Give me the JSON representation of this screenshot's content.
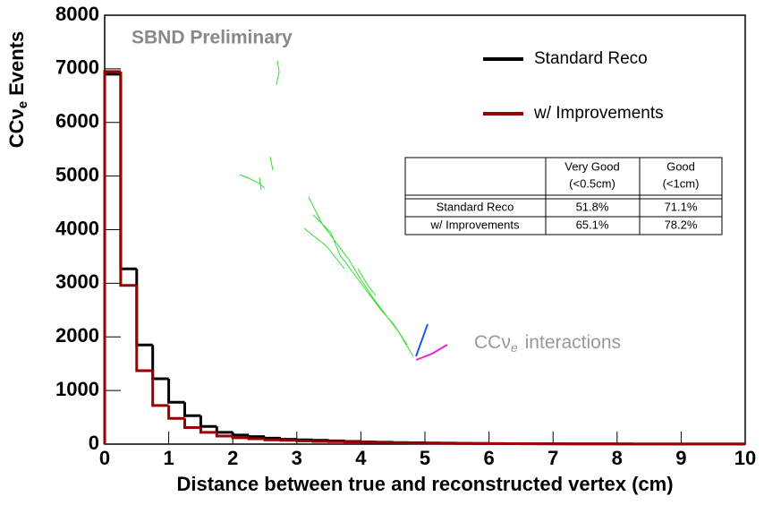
{
  "chart_data": {
    "type": "histogram",
    "annotation_prelim": "SBND Preliminary",
    "annotation_interactions": [
      "CCν",
      "e",
      "interactions"
    ],
    "x_label": "Distance between true and reconstructed vertex (cm)",
    "y_label": [
      "CCν",
      "e",
      "Events"
    ],
    "xlim": [
      0,
      10
    ],
    "ylim": [
      0,
      8000
    ],
    "xticks": [
      0,
      1,
      2,
      3,
      4,
      5,
      6,
      7,
      8,
      9,
      10
    ],
    "yticks": [
      0,
      1000,
      2000,
      3000,
      4000,
      5000,
      6000,
      7000,
      8000
    ],
    "bins": [
      0,
      0.25,
      0.5,
      0.75,
      1,
      1.25,
      1.5,
      1.75,
      2,
      2.25,
      2.5,
      2.75,
      3,
      3.25,
      3.5,
      3.75,
      4,
      4.25,
      4.5,
      4.75,
      5,
      5.25,
      5.5,
      5.75,
      6,
      6.25,
      6.5,
      6.75,
      7,
      7.25,
      7.5,
      7.75,
      8,
      8.25,
      8.5,
      8.75,
      9,
      9.25,
      9.5,
      9.75,
      10
    ],
    "series": [
      {
        "name": "Standard Reco",
        "color": "#000000",
        "values": [
          6900,
          3270,
          1850,
          1220,
          780,
          530,
          330,
          220,
          170,
          140,
          110,
          90,
          80,
          70,
          60,
          50,
          40,
          35,
          30,
          25,
          20,
          18,
          15,
          12,
          10,
          9,
          8,
          7,
          6,
          5,
          5,
          4,
          4,
          3,
          3,
          3,
          2,
          2,
          2,
          2
        ]
      },
      {
        "name": "w/ Improvements",
        "color": "#990000",
        "values": [
          6950,
          2960,
          1370,
          720,
          480,
          310,
          220,
          150,
          120,
          100,
          80,
          70,
          60,
          50,
          45,
          40,
          35,
          30,
          25,
          20,
          18,
          15,
          12,
          10,
          9,
          8,
          7,
          6,
          5,
          5,
          4,
          4,
          3,
          3,
          3,
          2,
          2,
          2,
          2,
          2
        ]
      }
    ],
    "table": {
      "header": [
        "",
        "Very Good\n(<0.5cm)",
        "Good\n(<1cm)"
      ],
      "rows": [
        [
          "Standard Reco",
          "51.8%",
          "71.1%"
        ],
        [
          "w/ Improvements",
          "65.1%",
          "78.2%"
        ]
      ]
    }
  }
}
